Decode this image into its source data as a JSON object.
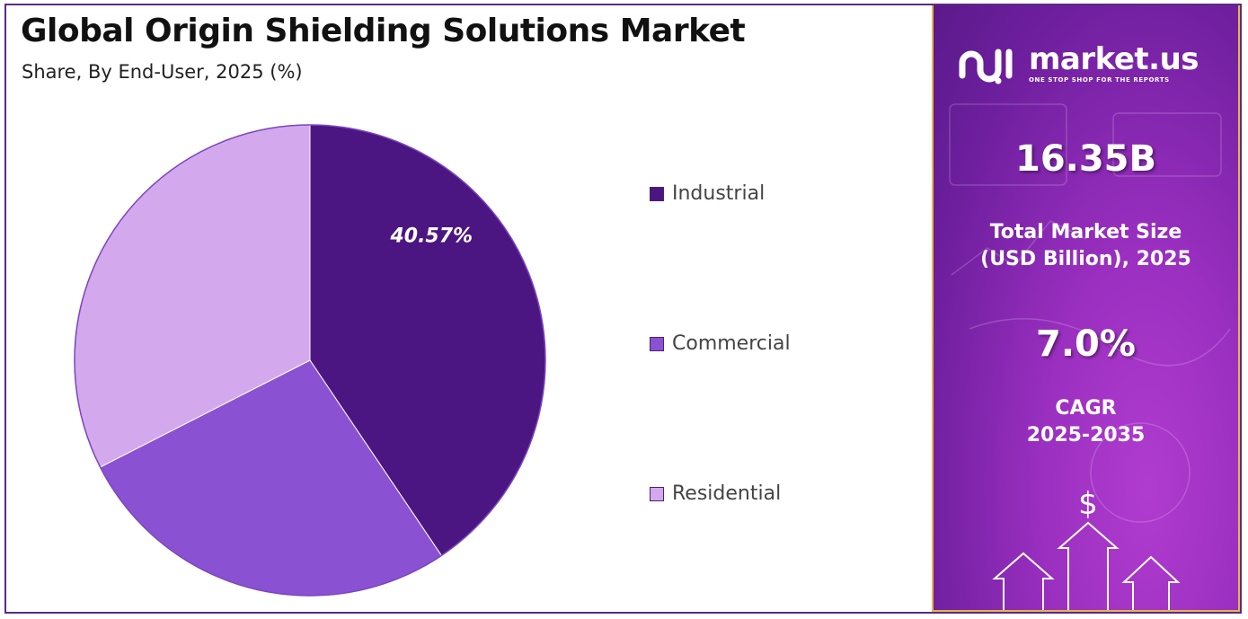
{
  "chart_data": {
    "type": "pie",
    "title": "Global Origin Shielding Solutions Market",
    "subtitle": "Share, By End-User, 2025 (%)",
    "categories": [
      "Industrial",
      "Commercial",
      "Residential"
    ],
    "values": [
      40.57,
      26.93,
      32.5
    ],
    "data_labels": [
      "40.57%",
      "",
      ""
    ],
    "colors": [
      "#4c1682",
      "#8a52d2",
      "#d3a8ed"
    ],
    "legend_position": "right"
  },
  "brand": {
    "name": "market.us",
    "tagline": "ONE STOP SHOP FOR THE REPORTS"
  },
  "stats": {
    "market_size_value": "16.35B",
    "market_size_label_line1": "Total Market Size",
    "market_size_label_line2": "(USD Billion), 2025",
    "cagr_value": "7.0%",
    "cagr_label_line1": "CAGR",
    "cagr_label_line2": "2025-2035"
  },
  "decor": {
    "dollar_symbol": "$"
  }
}
